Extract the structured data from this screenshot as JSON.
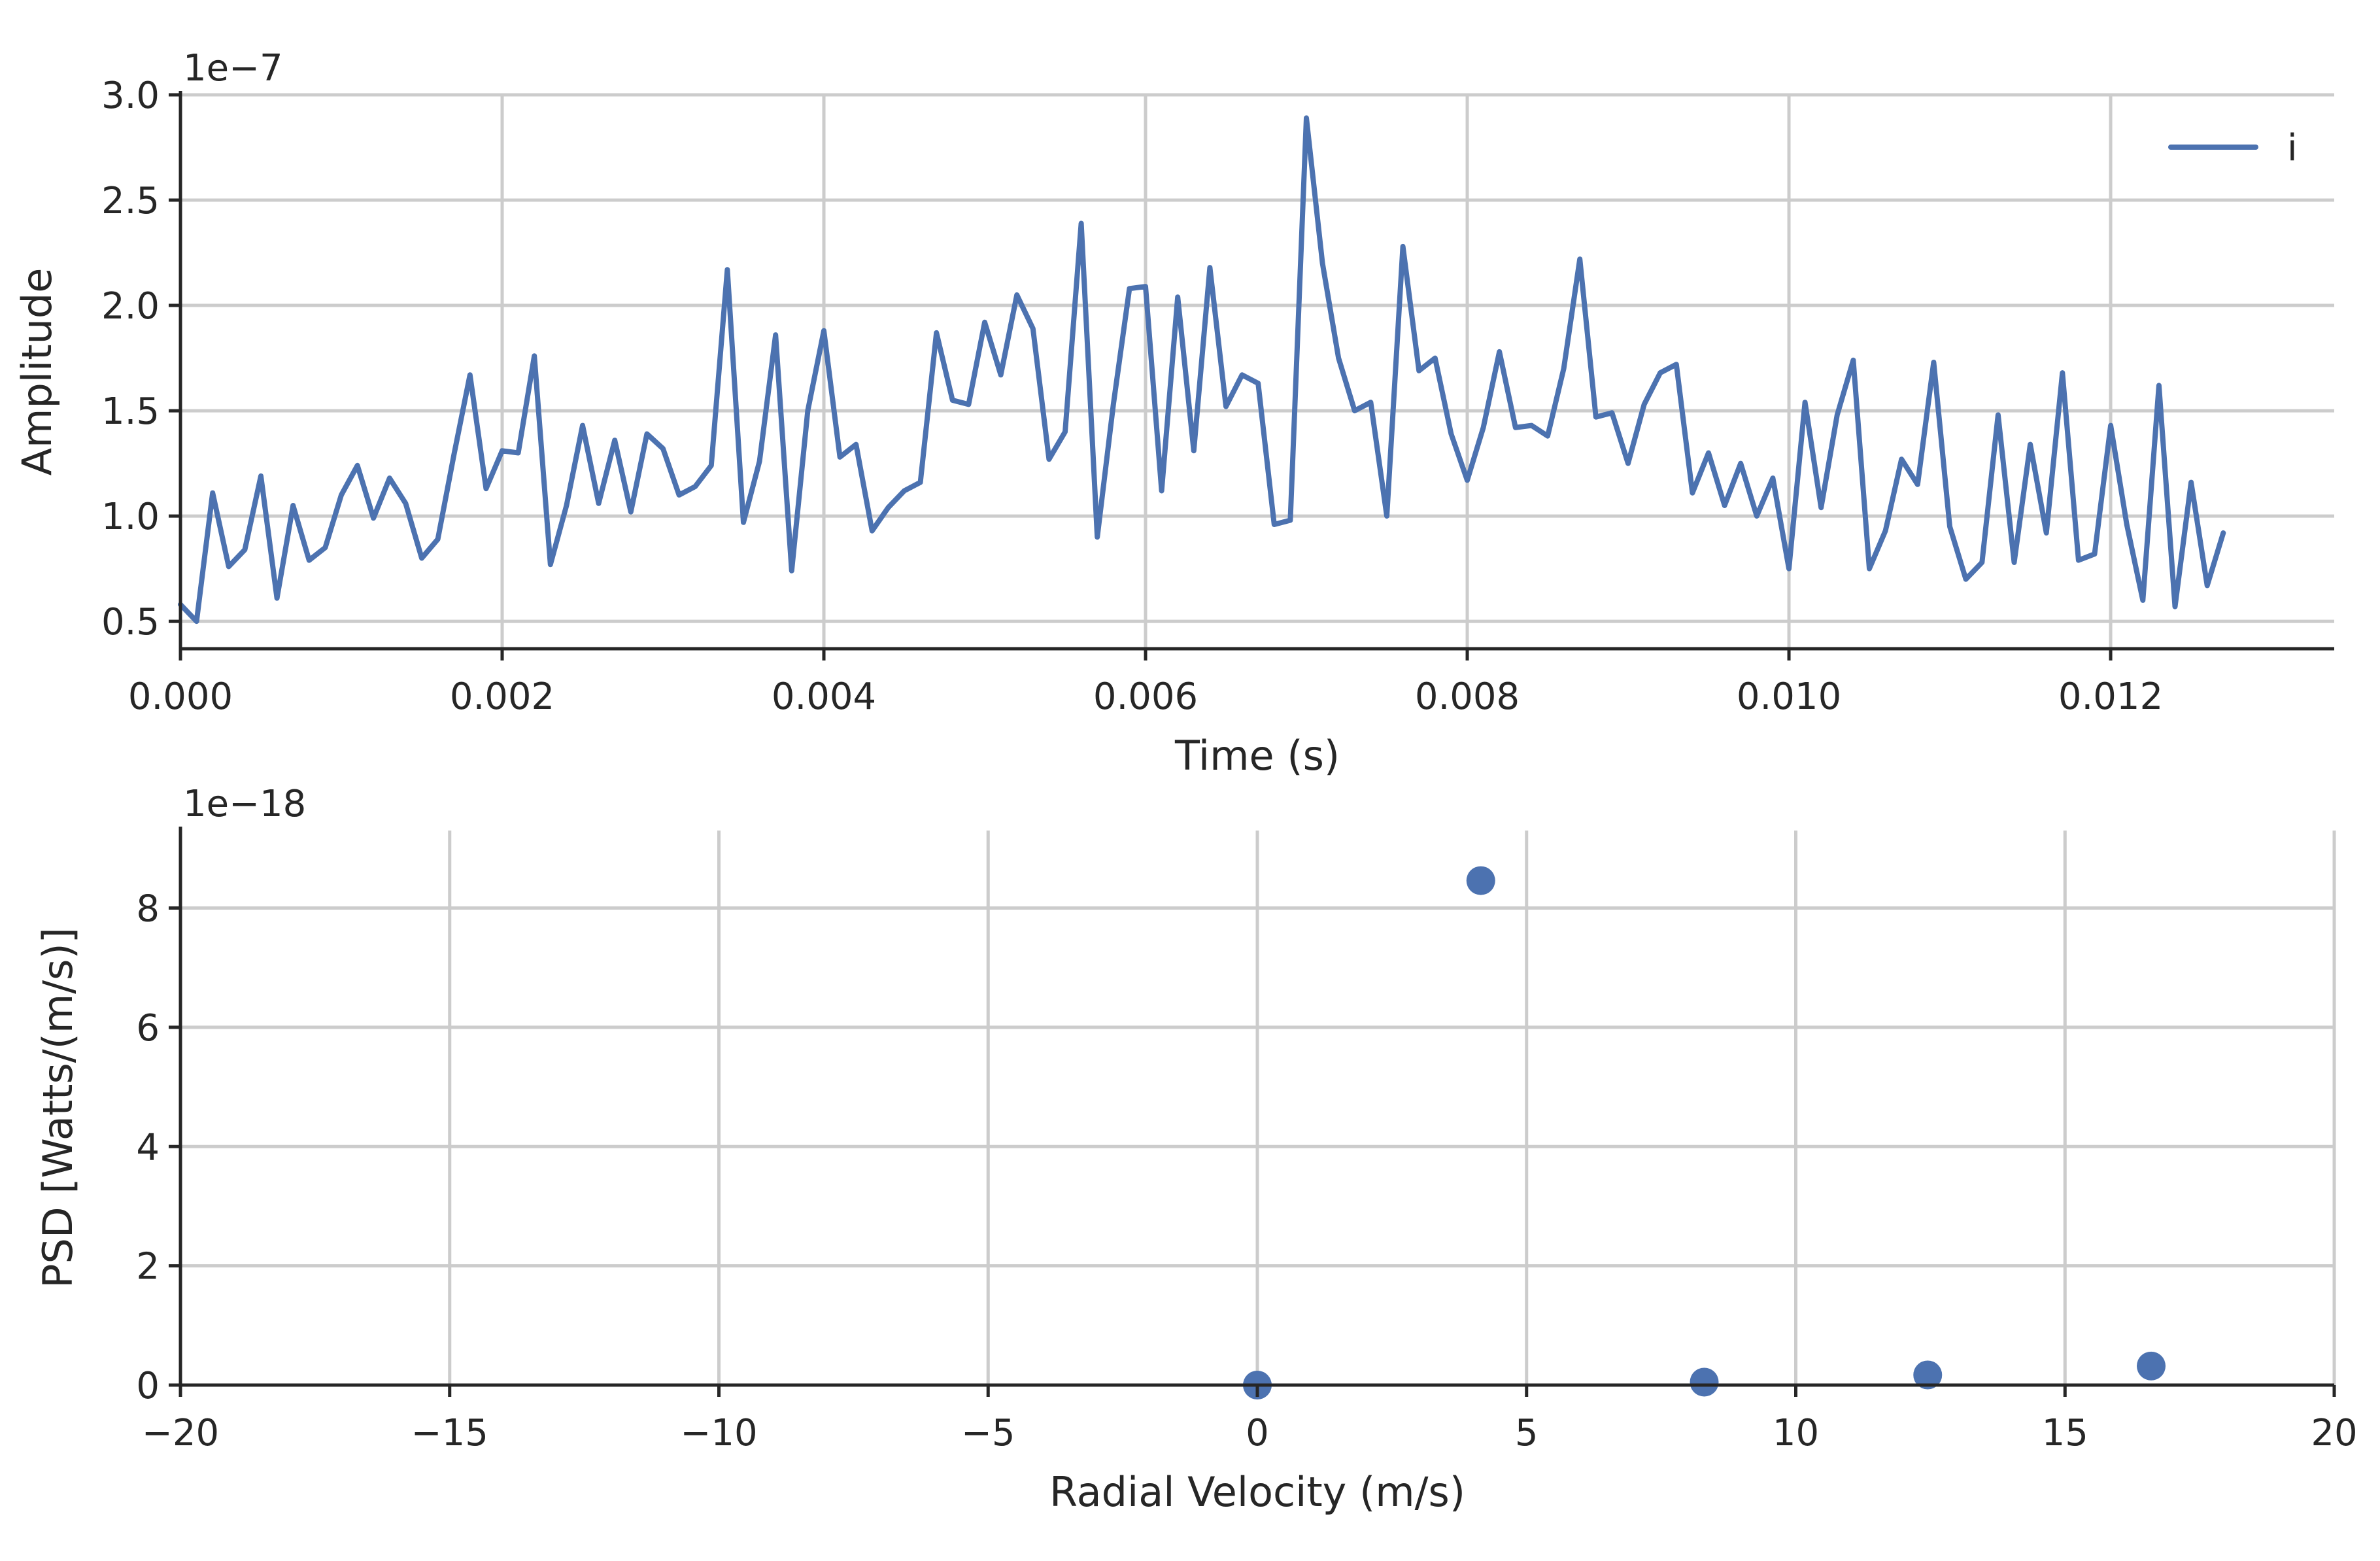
{
  "chart_data": [
    {
      "type": "line",
      "title": "",
      "xlabel": "Time (s)",
      "ylabel": "Amplitude",
      "y_offset_label": "1e−7",
      "xlim": [
        0,
        0.01339
      ],
      "ylim": [
        0.37,
        3.0
      ],
      "xticks": [
        0,
        0.002,
        0.004,
        0.006,
        0.008,
        0.01,
        0.012
      ],
      "xtick_labels": [
        "0.000",
        "0.002",
        "0.004",
        "0.006",
        "0.008",
        "0.010",
        "0.012"
      ],
      "yticks": [
        0.5,
        1.0,
        1.5,
        2.0,
        2.5,
        3.0
      ],
      "ytick_labels": [
        "0.5",
        "1.0",
        "1.5",
        "2.0",
        "2.5",
        "3.0"
      ],
      "grid": true,
      "legend": "top-right",
      "color": "#4c72b0",
      "series": [
        {
          "name": "i",
          "x_start": 0,
          "x_step": 0.0001,
          "values": [
            0.58,
            0.5,
            1.11,
            0.76,
            0.84,
            1.19,
            0.61,
            1.05,
            0.79,
            0.85,
            1.1,
            1.24,
            0.99,
            1.18,
            1.06,
            0.8,
            0.89,
            1.29,
            1.67,
            1.13,
            1.31,
            1.3,
            1.76,
            0.77,
            1.05,
            1.43,
            1.06,
            1.36,
            1.02,
            1.39,
            1.32,
            1.1,
            1.14,
            1.24,
            2.17,
            0.97,
            1.26,
            1.86,
            0.74,
            1.5,
            1.88,
            1.28,
            1.34,
            0.93,
            1.04,
            1.12,
            1.16,
            1.87,
            1.55,
            1.53,
            1.92,
            1.67,
            2.05,
            1.89,
            1.27,
            1.4,
            2.39,
            0.9,
            1.53,
            2.08,
            2.09,
            1.12,
            2.04,
            1.31,
            2.18,
            1.52,
            1.67,
            1.63,
            0.96,
            0.98,
            2.89,
            2.2,
            1.75,
            1.5,
            1.54,
            1.0,
            2.28,
            1.69,
            1.75,
            1.39,
            1.17,
            1.42,
            1.78,
            1.42,
            1.43,
            1.38,
            1.7,
            2.22,
            1.47,
            1.49,
            1.25,
            1.53,
            1.68,
            1.72,
            1.11,
            1.3,
            1.05,
            1.25,
            1.0,
            1.18,
            0.75,
            1.54,
            1.04,
            1.48,
            1.74,
            0.75,
            0.93,
            1.27,
            1.15,
            1.73,
            0.95,
            0.7,
            0.78,
            1.48,
            0.78,
            1.34,
            0.92,
            1.68,
            0.79,
            0.82,
            1.43,
            0.96,
            0.6,
            1.62,
            0.57,
            1.16,
            0.67,
            0.92
          ]
        }
      ]
    },
    {
      "type": "scatter",
      "title": "",
      "xlabel": "Radial Velocity (m/s)",
      "ylabel": "PSD [Watts/(m/s)]",
      "y_offset_label": "1e−18",
      "xlim": [
        -20,
        20
      ],
      "ylim": [
        0,
        9.3
      ],
      "xticks": [
        -20,
        -15,
        -10,
        -5,
        0,
        5,
        10,
        15,
        20
      ],
      "xtick_labels": [
        "−20",
        "−15",
        "−10",
        "−5",
        "0",
        "5",
        "10",
        "15",
        "20"
      ],
      "yticks": [
        0,
        2,
        4,
        6,
        8
      ],
      "ytick_labels": [
        "0",
        "2",
        "4",
        "6",
        "8"
      ],
      "grid": true,
      "color": "#4c72b0",
      "points": [
        {
          "x": 0.0,
          "y": 0.0
        },
        {
          "x": 4.15,
          "y": 8.46
        },
        {
          "x": 8.3,
          "y": 0.05
        },
        {
          "x": 12.45,
          "y": 0.17
        },
        {
          "x": 16.6,
          "y": 0.32
        }
      ]
    }
  ]
}
